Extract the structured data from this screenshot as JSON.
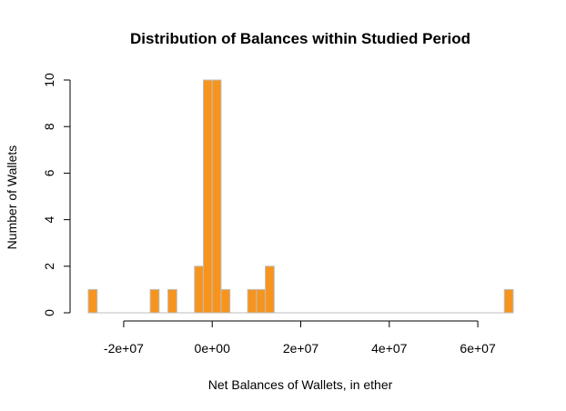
{
  "chart_data": {
    "type": "bar",
    "title": "Distribution of Balances within Studied Period",
    "xlabel": "Net Balances of Wallets, in ether",
    "ylabel": "Number of Wallets",
    "bar_color": "#F7941D",
    "bar_border_color": "#BDBDBD",
    "bin_width": 2000000,
    "bins_start": [
      -28000000,
      -26000000,
      -24000000,
      -22000000,
      -20000000,
      -18000000,
      -16000000,
      -14000000,
      -12000000,
      -10000000,
      -8000000,
      -6000000,
      -4000000,
      -2000000,
      0,
      2000000,
      4000000,
      6000000,
      8000000,
      10000000,
      12000000,
      14000000,
      16000000,
      18000000,
      20000000,
      22000000,
      24000000,
      26000000,
      28000000,
      30000000,
      32000000,
      34000000,
      36000000,
      38000000,
      40000000,
      42000000,
      44000000,
      46000000,
      48000000,
      50000000,
      52000000,
      54000000,
      56000000,
      58000000,
      60000000,
      62000000,
      64000000,
      66000000
    ],
    "values": [
      1,
      0,
      0,
      0,
      0,
      0,
      0,
      1,
      0,
      1,
      0,
      0,
      2,
      10,
      10,
      1,
      0,
      0,
      1,
      1,
      2,
      0,
      0,
      0,
      0,
      0,
      0,
      0,
      0,
      0,
      0,
      0,
      0,
      0,
      0,
      0,
      0,
      0,
      0,
      0,
      0,
      0,
      0,
      0,
      0,
      0,
      0,
      1
    ],
    "xlim": [
      -28000000,
      68000000
    ],
    "ylim": [
      0,
      10
    ],
    "x_ticks": [
      -20000000,
      0,
      20000000,
      40000000,
      60000000
    ],
    "x_tick_labels": [
      "-2e+07",
      "0e+00",
      "2e+07",
      "4e+07",
      "6e+07"
    ],
    "y_ticks": [
      0,
      2,
      4,
      6,
      8,
      10
    ],
    "y_tick_labels": [
      "0",
      "2",
      "4",
      "6",
      "8",
      "10"
    ],
    "grid": false
  }
}
